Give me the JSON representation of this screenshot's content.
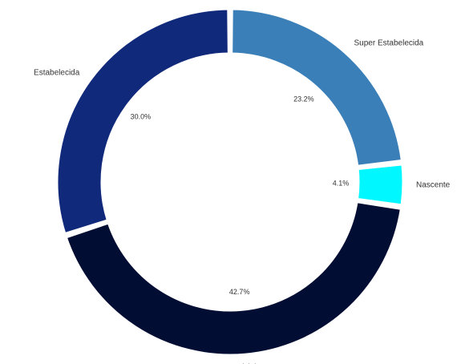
{
  "chart_data": {
    "type": "pie",
    "variant": "donut",
    "legend": "labels-outside",
    "slices": [
      {
        "label": "Super Estabelecida",
        "value": 23.2,
        "value_label": "23.2%",
        "color": "#3a7fb8"
      },
      {
        "label": "Nascente",
        "value": 4.1,
        "value_label": "4.1%",
        "color": "#00f7ff"
      },
      {
        "label": "Inicial",
        "value": 42.7,
        "value_label": "42.7%",
        "color": "#020d33"
      },
      {
        "label": "Estabelecida",
        "value": 30.0,
        "value_label": "30.0%",
        "color": "#10297a"
      }
    ]
  }
}
